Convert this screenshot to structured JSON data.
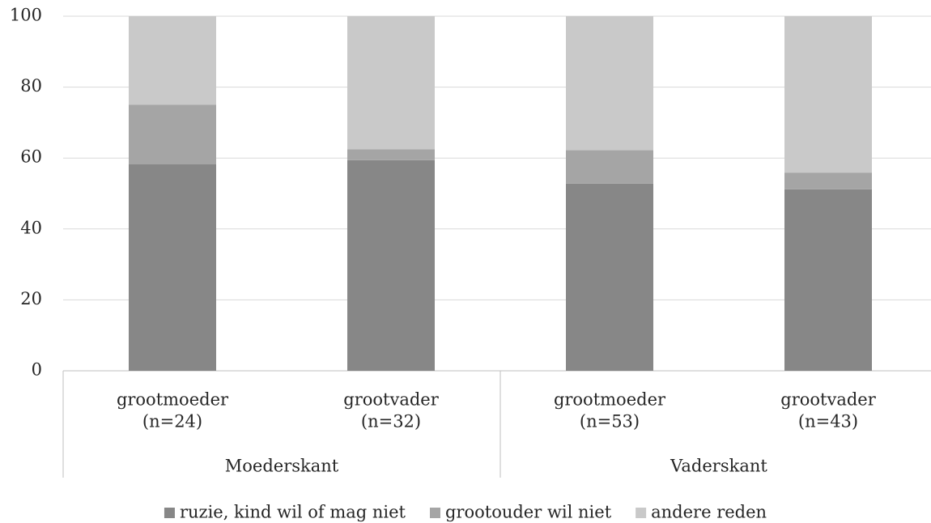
{
  "chart_data": {
    "type": "stacked_bar",
    "categories": [
      [
        "grootmoeder",
        "(n=24)"
      ],
      [
        "grootvader",
        "(n=32)"
      ],
      [
        "grootmoeder",
        "(n=53)"
      ],
      [
        "grootvader",
        "(n=43)"
      ]
    ],
    "groups": [
      "Moederskant",
      "Vaderskant"
    ],
    "series": [
      {
        "name": "ruzie, kind wil of mag niet",
        "color": "#878787",
        "values": [
          58.3,
          59.4,
          52.8,
          51.2
        ]
      },
      {
        "name": "grootouder wil niet",
        "color": "#a5a5a5",
        "values": [
          16.7,
          3.1,
          9.4,
          4.7
        ]
      },
      {
        "name": "andere reden",
        "color": "#c9c9c9",
        "values": [
          25.0,
          37.5,
          37.8,
          44.1
        ]
      }
    ],
    "ylim": [
      0,
      100
    ],
    "yticks": [
      0,
      20,
      40,
      60,
      80,
      100
    ],
    "grid": true,
    "legend": "bottom"
  }
}
